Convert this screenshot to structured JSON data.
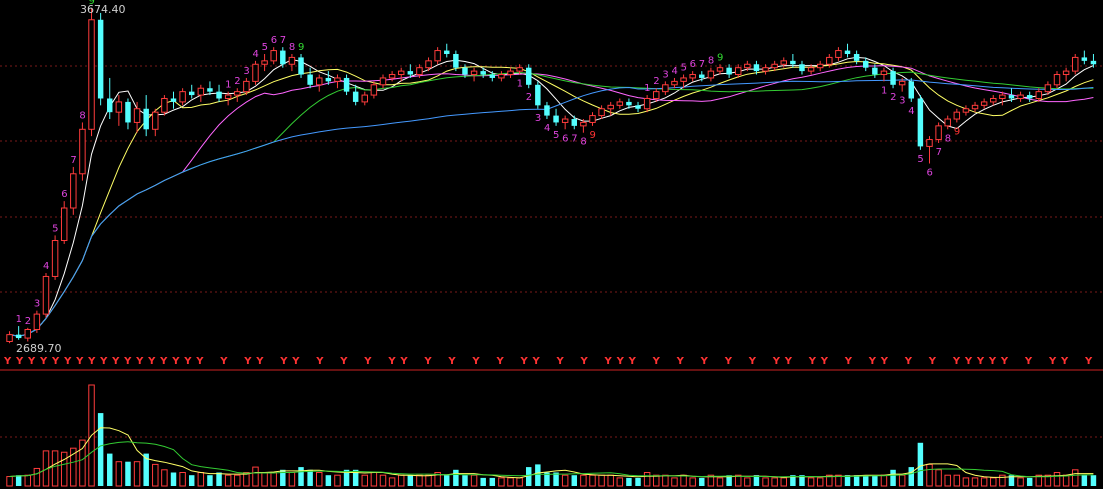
{
  "colors": {
    "background": "#000000",
    "grid": "#7a1a1a",
    "up_candle": "#ff3c3c",
    "down_candle": "#54ffff",
    "ma5": "#ffffff",
    "ma10": "#ffff66",
    "ma20": "#ff66ff",
    "ma30": "#33cc33",
    "ma60": "#4499ff",
    "td_count": "#dd44dd",
    "td_nine_top": "#33dd33",
    "td_nine_bottom": "#ff3333",
    "signal_y": "#ff3333",
    "separator": "#cc2222"
  },
  "chart_data": {
    "type": "candlestick",
    "title": "",
    "high_label": "3674.40",
    "low_label": "2689.70",
    "ylim": [
      2689.7,
      3674.4
    ],
    "gridlines": true,
    "series": [
      {
        "name": "",
        "kind": "ohlc",
        "description": "daily candles"
      },
      {
        "name": "",
        "kind": "volume"
      }
    ],
    "ohlc_points": [
      [
        2700,
        2730,
        2695,
        2720
      ],
      [
        2720,
        2745,
        2705,
        2710
      ],
      [
        2710,
        2740,
        2700,
        2735
      ],
      [
        2735,
        2790,
        2725,
        2780
      ],
      [
        2780,
        2900,
        2770,
        2890
      ],
      [
        2890,
        3010,
        2880,
        2995
      ],
      [
        2995,
        3110,
        2985,
        3090
      ],
      [
        3090,
        3210,
        3070,
        3190
      ],
      [
        3190,
        3340,
        3170,
        3320
      ],
      [
        3320,
        3674,
        3300,
        3640
      ],
      [
        3640,
        3660,
        3390,
        3410
      ],
      [
        3410,
        3470,
        3350,
        3370
      ],
      [
        3370,
        3420,
        3330,
        3400
      ],
      [
        3400,
        3410,
        3320,
        3340
      ],
      [
        3340,
        3400,
        3310,
        3380
      ],
      [
        3380,
        3420,
        3300,
        3320
      ],
      [
        3320,
        3380,
        3300,
        3370
      ],
      [
        3370,
        3420,
        3360,
        3410
      ],
      [
        3410,
        3430,
        3380,
        3400
      ],
      [
        3400,
        3440,
        3390,
        3430
      ],
      [
        3430,
        3450,
        3410,
        3420
      ],
      [
        3420,
        3450,
        3400,
        3440
      ],
      [
        3440,
        3460,
        3420,
        3430
      ],
      [
        3430,
        3450,
        3400,
        3410
      ],
      [
        3410,
        3430,
        3390,
        3420
      ],
      [
        3420,
        3440,
        3400,
        3430
      ],
      [
        3430,
        3470,
        3420,
        3460
      ],
      [
        3460,
        3520,
        3450,
        3510
      ],
      [
        3510,
        3540,
        3490,
        3520
      ],
      [
        3520,
        3560,
        3510,
        3550
      ],
      [
        3550,
        3560,
        3500,
        3510
      ],
      [
        3510,
        3540,
        3490,
        3530
      ],
      [
        3530,
        3540,
        3470,
        3480
      ],
      [
        3480,
        3500,
        3440,
        3450
      ],
      [
        3450,
        3480,
        3430,
        3470
      ],
      [
        3470,
        3490,
        3450,
        3460
      ],
      [
        3460,
        3480,
        3440,
        3470
      ],
      [
        3470,
        3480,
        3420,
        3430
      ],
      [
        3430,
        3450,
        3390,
        3400
      ],
      [
        3400,
        3430,
        3390,
        3420
      ],
      [
        3420,
        3460,
        3410,
        3450
      ],
      [
        3450,
        3480,
        3440,
        3470
      ],
      [
        3470,
        3490,
        3460,
        3480
      ],
      [
        3480,
        3500,
        3460,
        3490
      ],
      [
        3490,
        3510,
        3470,
        3480
      ],
      [
        3480,
        3510,
        3470,
        3500
      ],
      [
        3500,
        3530,
        3490,
        3520
      ],
      [
        3520,
        3560,
        3510,
        3550
      ],
      [
        3550,
        3570,
        3530,
        3540
      ],
      [
        3540,
        3550,
        3490,
        3500
      ],
      [
        3500,
        3510,
        3470,
        3480
      ],
      [
        3480,
        3500,
        3460,
        3490
      ],
      [
        3490,
        3500,
        3470,
        3480
      ],
      [
        3480,
        3490,
        3460,
        3470
      ],
      [
        3470,
        3490,
        3460,
        3480
      ],
      [
        3480,
        3500,
        3470,
        3490
      ],
      [
        3490,
        3510,
        3480,
        3500
      ],
      [
        3500,
        3510,
        3440,
        3450
      ],
      [
        3450,
        3460,
        3380,
        3390
      ],
      [
        3390,
        3400,
        3350,
        3360
      ],
      [
        3360,
        3380,
        3330,
        3340
      ],
      [
        3340,
        3360,
        3320,
        3350
      ],
      [
        3350,
        3360,
        3320,
        3330
      ],
      [
        3330,
        3350,
        3310,
        3340
      ],
      [
        3340,
        3370,
        3330,
        3360
      ],
      [
        3360,
        3390,
        3350,
        3380
      ],
      [
        3380,
        3400,
        3360,
        3390
      ],
      [
        3390,
        3410,
        3380,
        3400
      ],
      [
        3400,
        3410,
        3380,
        3390
      ],
      [
        3390,
        3400,
        3370,
        3380
      ],
      [
        3380,
        3420,
        3370,
        3410
      ],
      [
        3410,
        3440,
        3400,
        3430
      ],
      [
        3430,
        3460,
        3420,
        3450
      ],
      [
        3450,
        3470,
        3440,
        3460
      ],
      [
        3460,
        3480,
        3440,
        3470
      ],
      [
        3470,
        3490,
        3460,
        3480
      ],
      [
        3480,
        3490,
        3460,
        3470
      ],
      [
        3470,
        3500,
        3460,
        3490
      ],
      [
        3490,
        3510,
        3480,
        3500
      ],
      [
        3500,
        3510,
        3470,
        3480
      ],
      [
        3480,
        3510,
        3470,
        3500
      ],
      [
        3500,
        3520,
        3490,
        3510
      ],
      [
        3510,
        3520,
        3480,
        3490
      ],
      [
        3490,
        3510,
        3480,
        3500
      ],
      [
        3500,
        3520,
        3490,
        3510
      ],
      [
        3510,
        3530,
        3500,
        3520
      ],
      [
        3520,
        3540,
        3500,
        3510
      ],
      [
        3510,
        3520,
        3480,
        3490
      ],
      [
        3490,
        3510,
        3480,
        3500
      ],
      [
        3500,
        3520,
        3490,
        3510
      ],
      [
        3510,
        3540,
        3500,
        3530
      ],
      [
        3530,
        3560,
        3520,
        3550
      ],
      [
        3550,
        3570,
        3530,
        3540
      ],
      [
        3540,
        3550,
        3510,
        3520
      ],
      [
        3520,
        3530,
        3490,
        3500
      ],
      [
        3500,
        3510,
        3470,
        3480
      ],
      [
        3480,
        3500,
        3460,
        3490
      ],
      [
        3490,
        3500,
        3440,
        3450
      ],
      [
        3450,
        3470,
        3430,
        3460
      ],
      [
        3460,
        3470,
        3400,
        3410
      ],
      [
        3410,
        3420,
        3260,
        3270
      ],
      [
        3270,
        3300,
        3220,
        3290
      ],
      [
        3290,
        3340,
        3280,
        3330
      ],
      [
        3330,
        3360,
        3320,
        3350
      ],
      [
        3350,
        3380,
        3340,
        3370
      ],
      [
        3370,
        3390,
        3360,
        3380
      ],
      [
        3380,
        3400,
        3370,
        3390
      ],
      [
        3390,
        3410,
        3380,
        3400
      ],
      [
        3400,
        3420,
        3390,
        3410
      ],
      [
        3410,
        3430,
        3390,
        3420
      ],
      [
        3420,
        3440,
        3400,
        3410
      ],
      [
        3410,
        3430,
        3400,
        3420
      ],
      [
        3420,
        3430,
        3400,
        3410
      ],
      [
        3410,
        3440,
        3400,
        3430
      ],
      [
        3430,
        3460,
        3420,
        3450
      ],
      [
        3450,
        3490,
        3440,
        3480
      ],
      [
        3480,
        3500,
        3460,
        3490
      ],
      [
        3490,
        3540,
        3480,
        3530
      ],
      [
        3530,
        3550,
        3510,
        3520
      ],
      [
        3520,
        3540,
        3500,
        3510
      ]
    ],
    "td_labels_top": [
      "1",
      "2",
      "3",
      "4",
      "5",
      "6",
      "7",
      "8",
      "9"
    ],
    "td_labels_bottom": [
      "1",
      "2",
      "3",
      "4",
      "5",
      "6",
      "7",
      "8",
      "9"
    ],
    "signal_marker": "Y",
    "signal_rows": "YYYYYYYYYYYYYYYYY Y YY YY Y Y Y YY Y Y Y Y YY Y Y YYY Y Y Y Y Y YY YY Y YY Y Y YYYYY Y YY Y"
  }
}
